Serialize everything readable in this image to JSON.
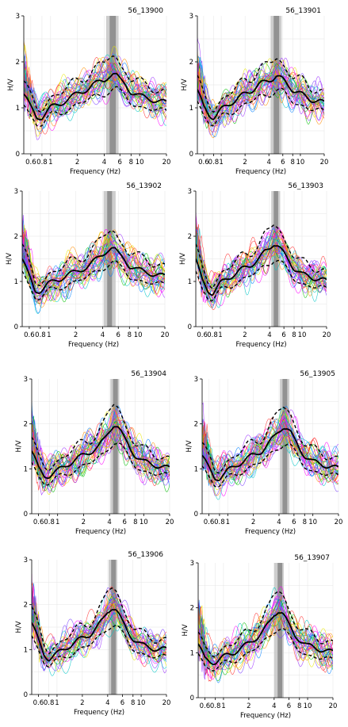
{
  "chart_data": [
    {
      "type": "line",
      "title": "56_13900",
      "xlabel": "Frequency (Hz)",
      "ylabel": "H/V",
      "x_scale": "log",
      "xlim": [
        0.5,
        20
      ],
      "ylim": [
        0,
        3
      ],
      "xticks": [
        0.6,
        0.8,
        1,
        2,
        4,
        6,
        8,
        10,
        20
      ],
      "xtick_labels": [
        "0.6",
        "0.8",
        "1",
        "2",
        "4",
        "6",
        "8",
        "10",
        "20"
      ],
      "yticks": [
        0,
        1,
        2,
        3
      ],
      "ytick_labels": [
        "0",
        "1",
        "2",
        "3"
      ],
      "peak_band": [
        4.2,
        5.8
      ],
      "peak_core": [
        4.6,
        5.4
      ],
      "series": [
        {
          "x": [
            0.5,
            0.6,
            0.7,
            0.8,
            1,
            1.3,
            1.6,
            2,
            2.5,
            3,
            3.5,
            4,
            4.5,
            5,
            5.5,
            6,
            7,
            8,
            10,
            13,
            16,
            20
          ],
          "y": [
            1.3,
            1.0,
            0.8,
            0.8,
            1.0,
            1.1,
            1.2,
            1.3,
            1.4,
            1.5,
            1.55,
            1.6,
            1.7,
            1.75,
            1.7,
            1.6,
            1.5,
            1.35,
            1.25,
            1.2,
            1.15,
            1.1
          ]
        }
      ]
    },
    {
      "type": "line",
      "title": "56_13901",
      "xlabel": "Frequency (Hz)",
      "ylabel": "H/V",
      "x_scale": "log",
      "xlim": [
        0.5,
        20
      ],
      "ylim": [
        0,
        3
      ],
      "xticks": [
        0.6,
        0.8,
        1,
        2,
        4,
        6,
        8,
        10,
        20
      ],
      "xtick_labels": [
        "0.6",
        "0.8",
        "1",
        "2",
        "4",
        "6",
        "8",
        "10",
        "20"
      ],
      "yticks": [
        0,
        1,
        2,
        3
      ],
      "ytick_labels": [
        "0",
        "1",
        "2",
        "3"
      ],
      "peak_band": [
        4.2,
        5.8
      ],
      "peak_core": [
        4.6,
        5.4
      ],
      "series": [
        {
          "x": [
            0.5,
            0.6,
            0.7,
            0.8,
            1,
            1.3,
            1.6,
            2,
            2.5,
            3,
            3.5,
            4,
            4.5,
            5,
            5.5,
            6,
            7,
            8,
            10,
            13,
            16,
            20
          ],
          "y": [
            1.4,
            1.0,
            0.85,
            0.8,
            0.95,
            1.1,
            1.2,
            1.3,
            1.4,
            1.5,
            1.55,
            1.6,
            1.65,
            1.7,
            1.65,
            1.6,
            1.5,
            1.4,
            1.3,
            1.2,
            1.15,
            1.1
          ]
        }
      ]
    },
    {
      "type": "line",
      "title": "56_13902",
      "xlabel": "Frequency (Hz)",
      "ylabel": "H/V",
      "x_scale": "log",
      "xlim": [
        0.5,
        20
      ],
      "ylim": [
        0,
        3
      ],
      "xticks": [
        0.6,
        0.8,
        1,
        2,
        4,
        6,
        8,
        10,
        20
      ],
      "xtick_labels": [
        "0.6",
        "0.8",
        "1",
        "2",
        "4",
        "6",
        "8",
        "10",
        "20"
      ],
      "yticks": [
        0,
        1,
        2,
        3
      ],
      "ytick_labels": [
        "0",
        "1",
        "2",
        "3"
      ],
      "peak_band": [
        4.1,
        5.6
      ],
      "peak_core": [
        4.5,
        5.1
      ],
      "series": [
        {
          "x": [
            0.5,
            0.6,
            0.7,
            0.8,
            1,
            1.3,
            1.6,
            2,
            2.5,
            3,
            3.5,
            4,
            4.5,
            5,
            5.5,
            6,
            7,
            8,
            10,
            13,
            16,
            20
          ],
          "y": [
            1.5,
            1.1,
            0.8,
            0.8,
            0.95,
            1.05,
            1.15,
            1.2,
            1.3,
            1.4,
            1.5,
            1.6,
            1.7,
            1.75,
            1.7,
            1.6,
            1.5,
            1.35,
            1.25,
            1.2,
            1.15,
            1.1
          ]
        }
      ]
    },
    {
      "type": "line",
      "title": "56_13903",
      "xlabel": "Frequency (Hz)",
      "ylabel": "H/V",
      "x_scale": "log",
      "xlim": [
        0.5,
        20
      ],
      "ylim": [
        0,
        3
      ],
      "xticks": [
        0.6,
        0.8,
        1,
        2,
        4,
        6,
        8,
        10,
        20
      ],
      "xtick_labels": [
        "0.6",
        "0.8",
        "1",
        "2",
        "4",
        "6",
        "8",
        "10",
        "20"
      ],
      "yticks": [
        0,
        1,
        2,
        3
      ],
      "ytick_labels": [
        "0",
        "1",
        "2",
        "3"
      ],
      "peak_band": [
        4.2,
        5.4
      ],
      "peak_core": [
        4.5,
        5.1
      ],
      "series": [
        {
          "x": [
            0.5,
            0.6,
            0.7,
            0.8,
            1,
            1.3,
            1.6,
            2,
            2.5,
            3,
            3.5,
            4,
            4.5,
            5,
            5.5,
            6,
            7,
            8,
            10,
            13,
            16,
            20
          ],
          "y": [
            1.5,
            1.0,
            0.8,
            0.75,
            0.95,
            1.1,
            1.2,
            1.3,
            1.4,
            1.5,
            1.65,
            1.75,
            1.85,
            1.8,
            1.7,
            1.6,
            1.45,
            1.3,
            1.15,
            1.1,
            1.05,
            1.0
          ]
        }
      ]
    },
    {
      "type": "line",
      "title": "56_13904",
      "xlabel": "Frequency (Hz)",
      "ylabel": "H/V",
      "x_scale": "log",
      "xlim": [
        0.5,
        20
      ],
      "ylim": [
        0,
        3
      ],
      "xticks": [
        0.6,
        0.8,
        1,
        2,
        4,
        6,
        8,
        10,
        20
      ],
      "xtick_labels": [
        "0.6",
        "0.8",
        "1",
        "2",
        "4",
        "6",
        "8",
        "10",
        "20"
      ],
      "yticks": [
        0,
        1,
        2,
        3
      ],
      "ytick_labels": [
        "0",
        "1",
        "2",
        "3"
      ],
      "peak_band": [
        4.1,
        5.2
      ],
      "peak_core": [
        4.4,
        5.0
      ],
      "series": [
        {
          "x": [
            0.5,
            0.6,
            0.7,
            0.8,
            1,
            1.3,
            1.6,
            2,
            2.5,
            3,
            3.5,
            4,
            4.5,
            5,
            5.5,
            6,
            7,
            8,
            10,
            13,
            16,
            20
          ],
          "y": [
            1.4,
            1.0,
            0.85,
            0.85,
            0.95,
            1.1,
            1.2,
            1.3,
            1.4,
            1.5,
            1.65,
            1.85,
            2.0,
            1.95,
            1.8,
            1.65,
            1.45,
            1.3,
            1.15,
            1.1,
            1.05,
            1.0
          ]
        }
      ]
    },
    {
      "type": "line",
      "title": "56_13905",
      "xlabel": "Frequency (Hz)",
      "ylabel": "H/V",
      "x_scale": "log",
      "xlim": [
        0.5,
        20
      ],
      "ylim": [
        0,
        3
      ],
      "xticks": [
        0.6,
        0.8,
        1,
        2,
        4,
        6,
        8,
        10,
        20
      ],
      "xtick_labels": [
        "0.6",
        "0.8",
        "1",
        "2",
        "4",
        "6",
        "8",
        "10",
        "20"
      ],
      "yticks": [
        0,
        1,
        2,
        3
      ],
      "ytick_labels": [
        "0",
        "1",
        "2",
        "3"
      ],
      "peak_band": [
        4.1,
        5.3
      ],
      "peak_core": [
        4.4,
        5.0
      ],
      "series": [
        {
          "x": [
            0.5,
            0.6,
            0.7,
            0.8,
            1,
            1.3,
            1.6,
            2,
            2.5,
            3,
            3.5,
            4,
            4.5,
            5,
            5.5,
            6,
            7,
            8,
            10,
            13,
            16,
            20
          ],
          "y": [
            1.3,
            1.0,
            0.8,
            0.8,
            0.95,
            1.1,
            1.2,
            1.3,
            1.4,
            1.55,
            1.7,
            1.85,
            1.95,
            1.9,
            1.8,
            1.65,
            1.45,
            1.3,
            1.15,
            1.1,
            1.05,
            1.0
          ]
        }
      ]
    },
    {
      "type": "line",
      "title": "56_13906",
      "xlabel": "Frequency (Hz)",
      "ylabel": "H/V",
      "x_scale": "log",
      "xlim": [
        0.5,
        20
      ],
      "ylim": [
        0,
        3
      ],
      "xticks": [
        0.6,
        0.8,
        1,
        2,
        4,
        6,
        8,
        10,
        20
      ],
      "xtick_labels": [
        "0.6",
        "0.8",
        "1",
        "2",
        "4",
        "6",
        "8",
        "10",
        "20"
      ],
      "yticks": [
        0,
        1,
        2,
        3
      ],
      "ytick_labels": [
        "0",
        "1",
        "2",
        "3"
      ],
      "peak_band": [
        4.1,
        5.2
      ],
      "peak_core": [
        4.4,
        5.0
      ],
      "series": [
        {
          "x": [
            0.5,
            0.6,
            0.7,
            0.8,
            1,
            1.3,
            1.6,
            2,
            2.5,
            3,
            3.5,
            4,
            4.5,
            5,
            5.5,
            6,
            7,
            8,
            10,
            13,
            16,
            20
          ],
          "y": [
            1.6,
            1.2,
            0.9,
            0.8,
            0.9,
            1.05,
            1.15,
            1.25,
            1.35,
            1.5,
            1.65,
            1.85,
            1.95,
            1.9,
            1.75,
            1.6,
            1.4,
            1.25,
            1.1,
            1.05,
            1.0,
            1.0
          ]
        }
      ]
    },
    {
      "type": "line",
      "title": "56_13907",
      "xlabel": "Frequency (Hz)",
      "ylabel": "H/V",
      "x_scale": "log",
      "xlim": [
        0.5,
        20
      ],
      "ylim": [
        0,
        3
      ],
      "xticks": [
        0.6,
        0.8,
        1,
        2,
        4,
        6,
        8,
        10,
        20
      ],
      "xtick_labels": [
        "0.6",
        "0.8",
        "1",
        "2",
        "4",
        "6",
        "8",
        "10",
        "20"
      ],
      "yticks": [
        0,
        1,
        2,
        3
      ],
      "ytick_labels": [
        "0",
        "1",
        "2",
        "3"
      ],
      "peak_band": [
        4.0,
        5.2
      ],
      "peak_core": [
        4.4,
        5.0
      ],
      "series": [
        {
          "x": [
            0.5,
            0.6,
            0.7,
            0.8,
            1,
            1.3,
            1.6,
            2,
            2.5,
            3,
            3.5,
            4,
            4.5,
            5,
            5.5,
            6,
            7,
            8,
            10,
            13,
            16,
            20
          ],
          "y": [
            1.2,
            0.85,
            0.8,
            0.8,
            0.9,
            1.0,
            1.1,
            1.2,
            1.35,
            1.5,
            1.65,
            1.85,
            1.95,
            1.9,
            1.75,
            1.6,
            1.4,
            1.3,
            1.15,
            1.1,
            1.05,
            1.0
          ]
        }
      ]
    }
  ],
  "colors": {
    "median": "#000000",
    "std_dash": "#000000",
    "window_palette": [
      "#9b30ff",
      "#ff00ff",
      "#0080ff",
      "#00c000",
      "#ff8c00",
      "#e8e800",
      "#00c8c8",
      "#ff3030",
      "#7a40ff"
    ],
    "band": "#c8c8c8",
    "band_core": "#8c8c8c"
  }
}
